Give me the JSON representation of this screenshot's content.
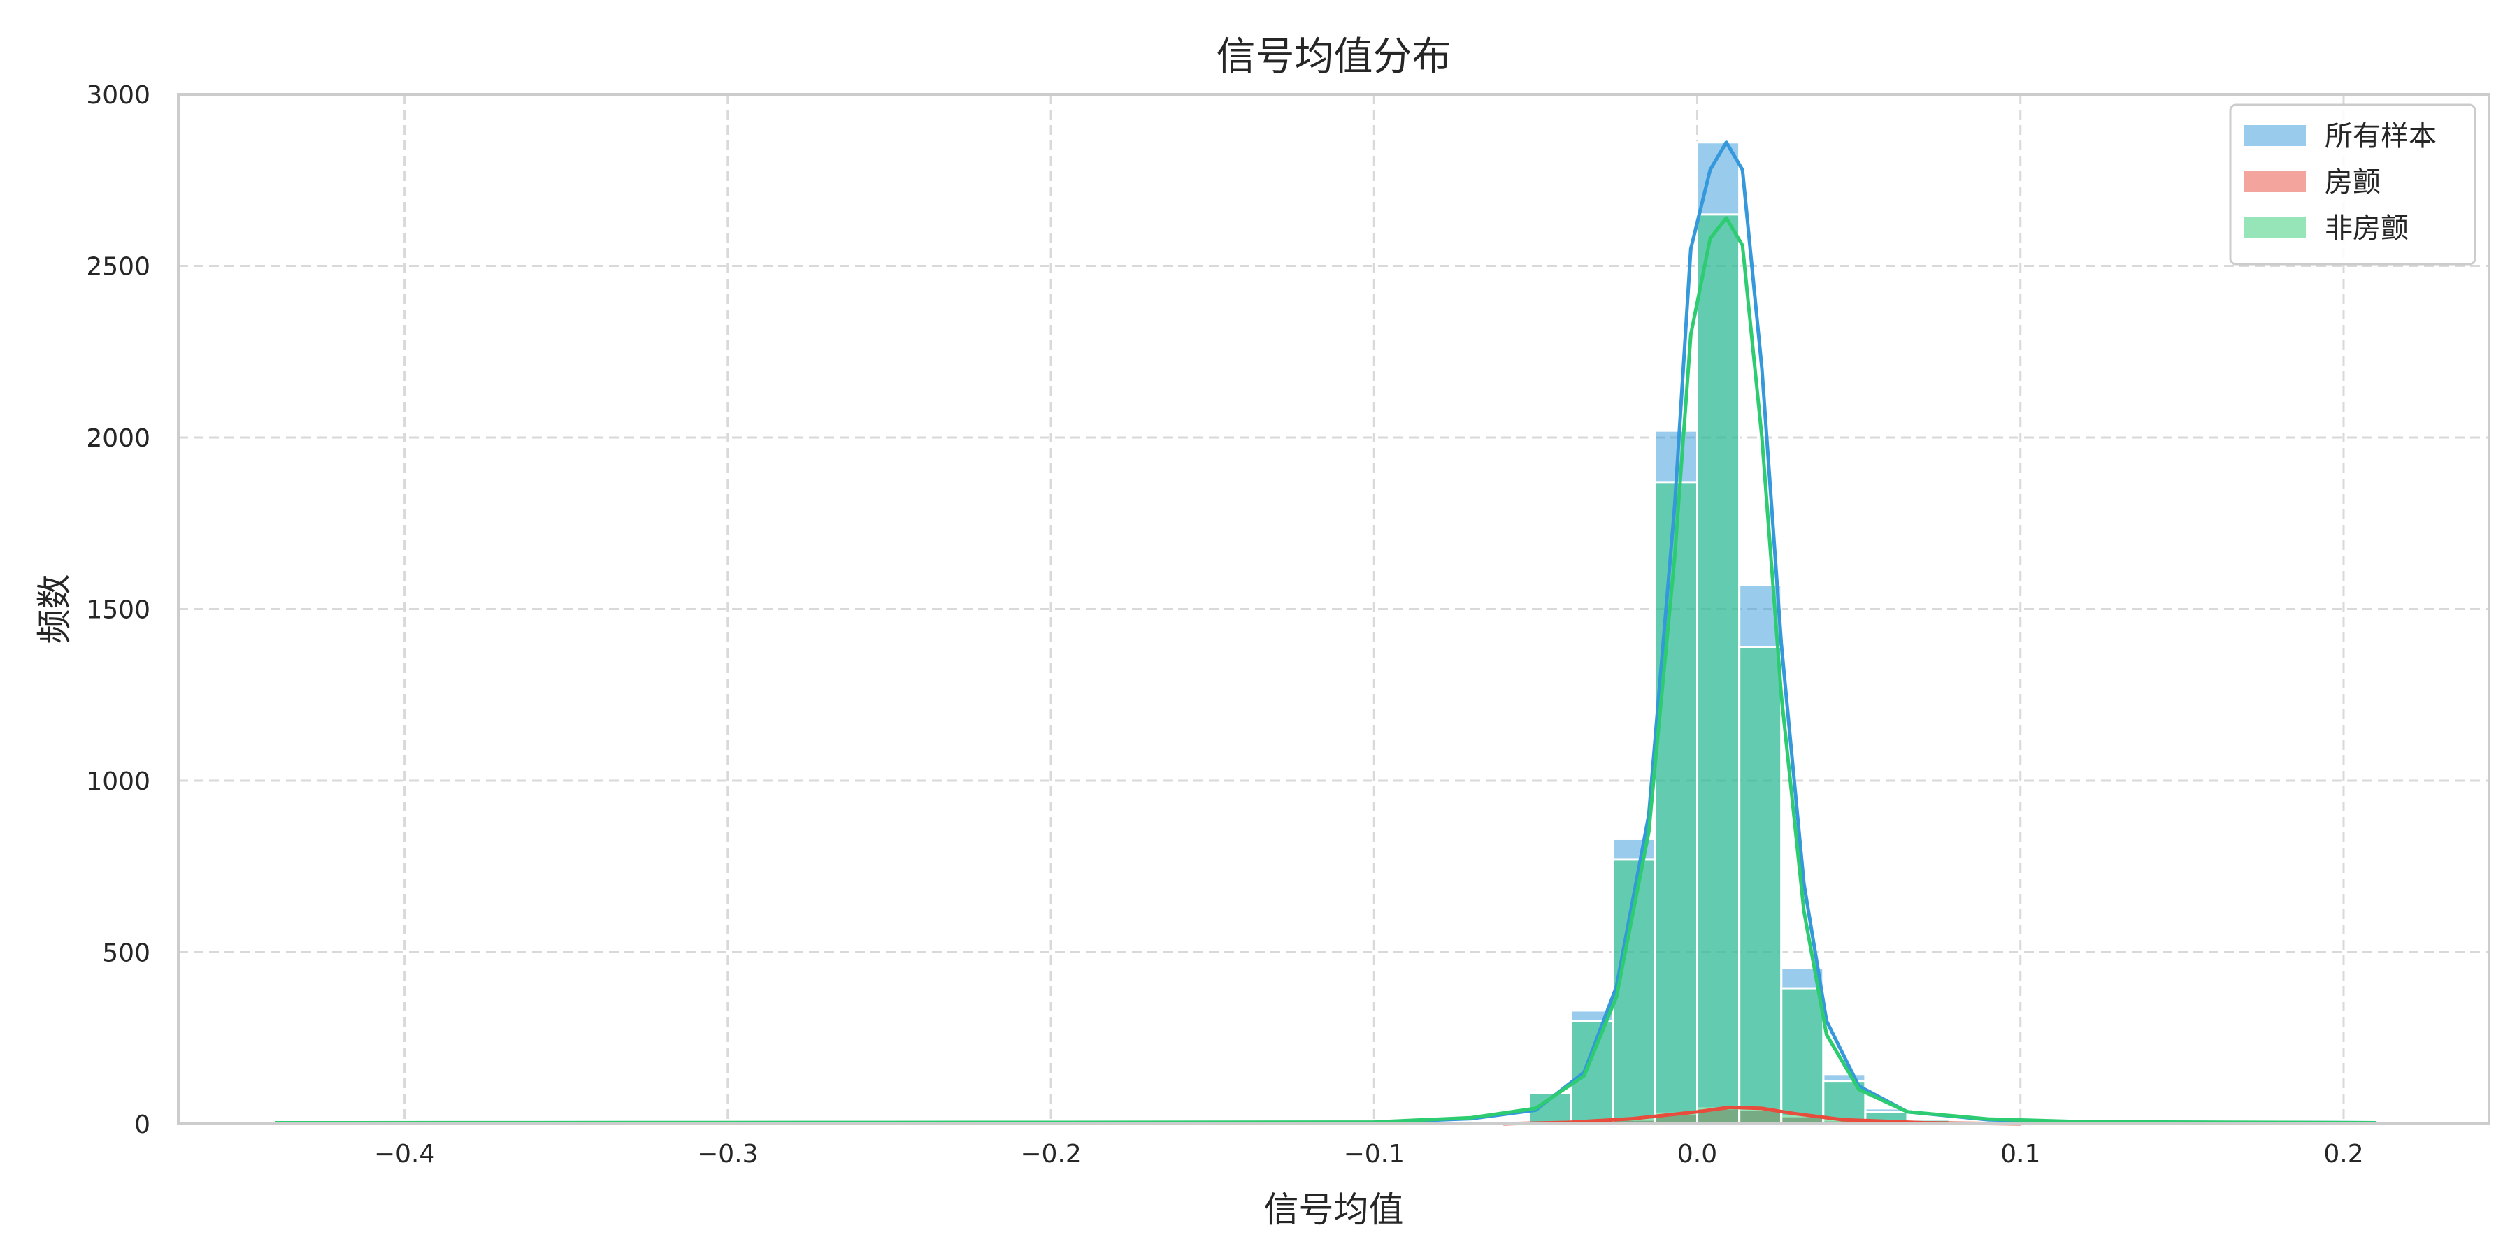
{
  "chart_data": {
    "type": "histogram",
    "title": "信号均值分布",
    "xlabel": "信号均值",
    "ylabel": "频数",
    "xlim": [
      -0.47,
      0.245
    ],
    "ylim": [
      0,
      3000
    ],
    "xticks": [
      -0.4,
      -0.3,
      -0.2,
      -0.1,
      0.0,
      0.1,
      0.2
    ],
    "xtick_labels": [
      "−0.4",
      "−0.3",
      "−0.2",
      "−0.1",
      "0.0",
      "0.1",
      "0.2"
    ],
    "yticks": [
      0,
      500,
      1000,
      1500,
      2000,
      2500,
      3000
    ],
    "grid": true,
    "legend_position": "top-right",
    "bin_width": 0.013,
    "series": [
      {
        "name": "所有样本",
        "color": "#3498db",
        "bins": [
          {
            "x": -0.0455,
            "y": 95
          },
          {
            "x": -0.0325,
            "y": 330
          },
          {
            "x": -0.0195,
            "y": 830
          },
          {
            "x": -0.0065,
            "y": 2020
          },
          {
            "x": 0.0065,
            "y": 2860
          },
          {
            "x": 0.0195,
            "y": 1570
          },
          {
            "x": 0.0325,
            "y": 455
          },
          {
            "x": 0.0455,
            "y": 145
          },
          {
            "x": 0.0585,
            "y": 45
          },
          {
            "x": 0.0715,
            "y": 15
          }
        ],
        "kde": [
          {
            "x": -0.44,
            "y": 3
          },
          {
            "x": -0.2,
            "y": 3
          },
          {
            "x": -0.1,
            "y": 4
          },
          {
            "x": -0.07,
            "y": 15
          },
          {
            "x": -0.05,
            "y": 40
          },
          {
            "x": -0.035,
            "y": 150
          },
          {
            "x": -0.025,
            "y": 400
          },
          {
            "x": -0.015,
            "y": 900
          },
          {
            "x": -0.007,
            "y": 1800
          },
          {
            "x": -0.002,
            "y": 2550
          },
          {
            "x": 0.004,
            "y": 2780
          },
          {
            "x": 0.009,
            "y": 2860
          },
          {
            "x": 0.014,
            "y": 2780
          },
          {
            "x": 0.02,
            "y": 2200
          },
          {
            "x": 0.026,
            "y": 1400
          },
          {
            "x": 0.033,
            "y": 700
          },
          {
            "x": 0.04,
            "y": 300
          },
          {
            "x": 0.05,
            "y": 110
          },
          {
            "x": 0.065,
            "y": 35
          },
          {
            "x": 0.09,
            "y": 12
          },
          {
            "x": 0.12,
            "y": 5
          },
          {
            "x": 0.21,
            "y": 3
          }
        ]
      },
      {
        "name": "房颤",
        "color": "#e74c3c",
        "bins": [
          {
            "x": -0.0195,
            "y": 12
          },
          {
            "x": -0.0065,
            "y": 30
          },
          {
            "x": 0.0065,
            "y": 45
          },
          {
            "x": 0.0195,
            "y": 40
          },
          {
            "x": 0.0325,
            "y": 22
          },
          {
            "x": 0.0455,
            "y": 10
          }
        ],
        "kde": [
          {
            "x": -0.06,
            "y": 0
          },
          {
            "x": -0.04,
            "y": 4
          },
          {
            "x": -0.02,
            "y": 15
          },
          {
            "x": 0.0,
            "y": 35
          },
          {
            "x": 0.01,
            "y": 48
          },
          {
            "x": 0.02,
            "y": 45
          },
          {
            "x": 0.03,
            "y": 30
          },
          {
            "x": 0.045,
            "y": 12
          },
          {
            "x": 0.07,
            "y": 3
          },
          {
            "x": 0.1,
            "y": 0
          }
        ]
      },
      {
        "name": "非房颤",
        "color": "#2ecc71",
        "bins": [
          {
            "x": -0.0455,
            "y": 90
          },
          {
            "x": -0.0325,
            "y": 300
          },
          {
            "x": -0.0195,
            "y": 770
          },
          {
            "x": -0.0065,
            "y": 1870
          },
          {
            "x": 0.0065,
            "y": 2650
          },
          {
            "x": 0.0195,
            "y": 1390
          },
          {
            "x": 0.0325,
            "y": 395
          },
          {
            "x": 0.0455,
            "y": 125
          },
          {
            "x": 0.0585,
            "y": 35
          },
          {
            "x": 0.0715,
            "y": 12
          }
        ],
        "kde": [
          {
            "x": -0.44,
            "y": 3
          },
          {
            "x": -0.2,
            "y": 4
          },
          {
            "x": -0.1,
            "y": 5
          },
          {
            "x": -0.07,
            "y": 18
          },
          {
            "x": -0.05,
            "y": 45
          },
          {
            "x": -0.035,
            "y": 140
          },
          {
            "x": -0.025,
            "y": 370
          },
          {
            "x": -0.015,
            "y": 850
          },
          {
            "x": -0.007,
            "y": 1650
          },
          {
            "x": -0.002,
            "y": 2300
          },
          {
            "x": 0.004,
            "y": 2580
          },
          {
            "x": 0.009,
            "y": 2640
          },
          {
            "x": 0.014,
            "y": 2560
          },
          {
            "x": 0.02,
            "y": 2000
          },
          {
            "x": 0.026,
            "y": 1250
          },
          {
            "x": 0.033,
            "y": 620
          },
          {
            "x": 0.04,
            "y": 260
          },
          {
            "x": 0.05,
            "y": 100
          },
          {
            "x": 0.065,
            "y": 35
          },
          {
            "x": 0.09,
            "y": 14
          },
          {
            "x": 0.12,
            "y": 6
          },
          {
            "x": 0.21,
            "y": 3
          }
        ]
      }
    ]
  }
}
